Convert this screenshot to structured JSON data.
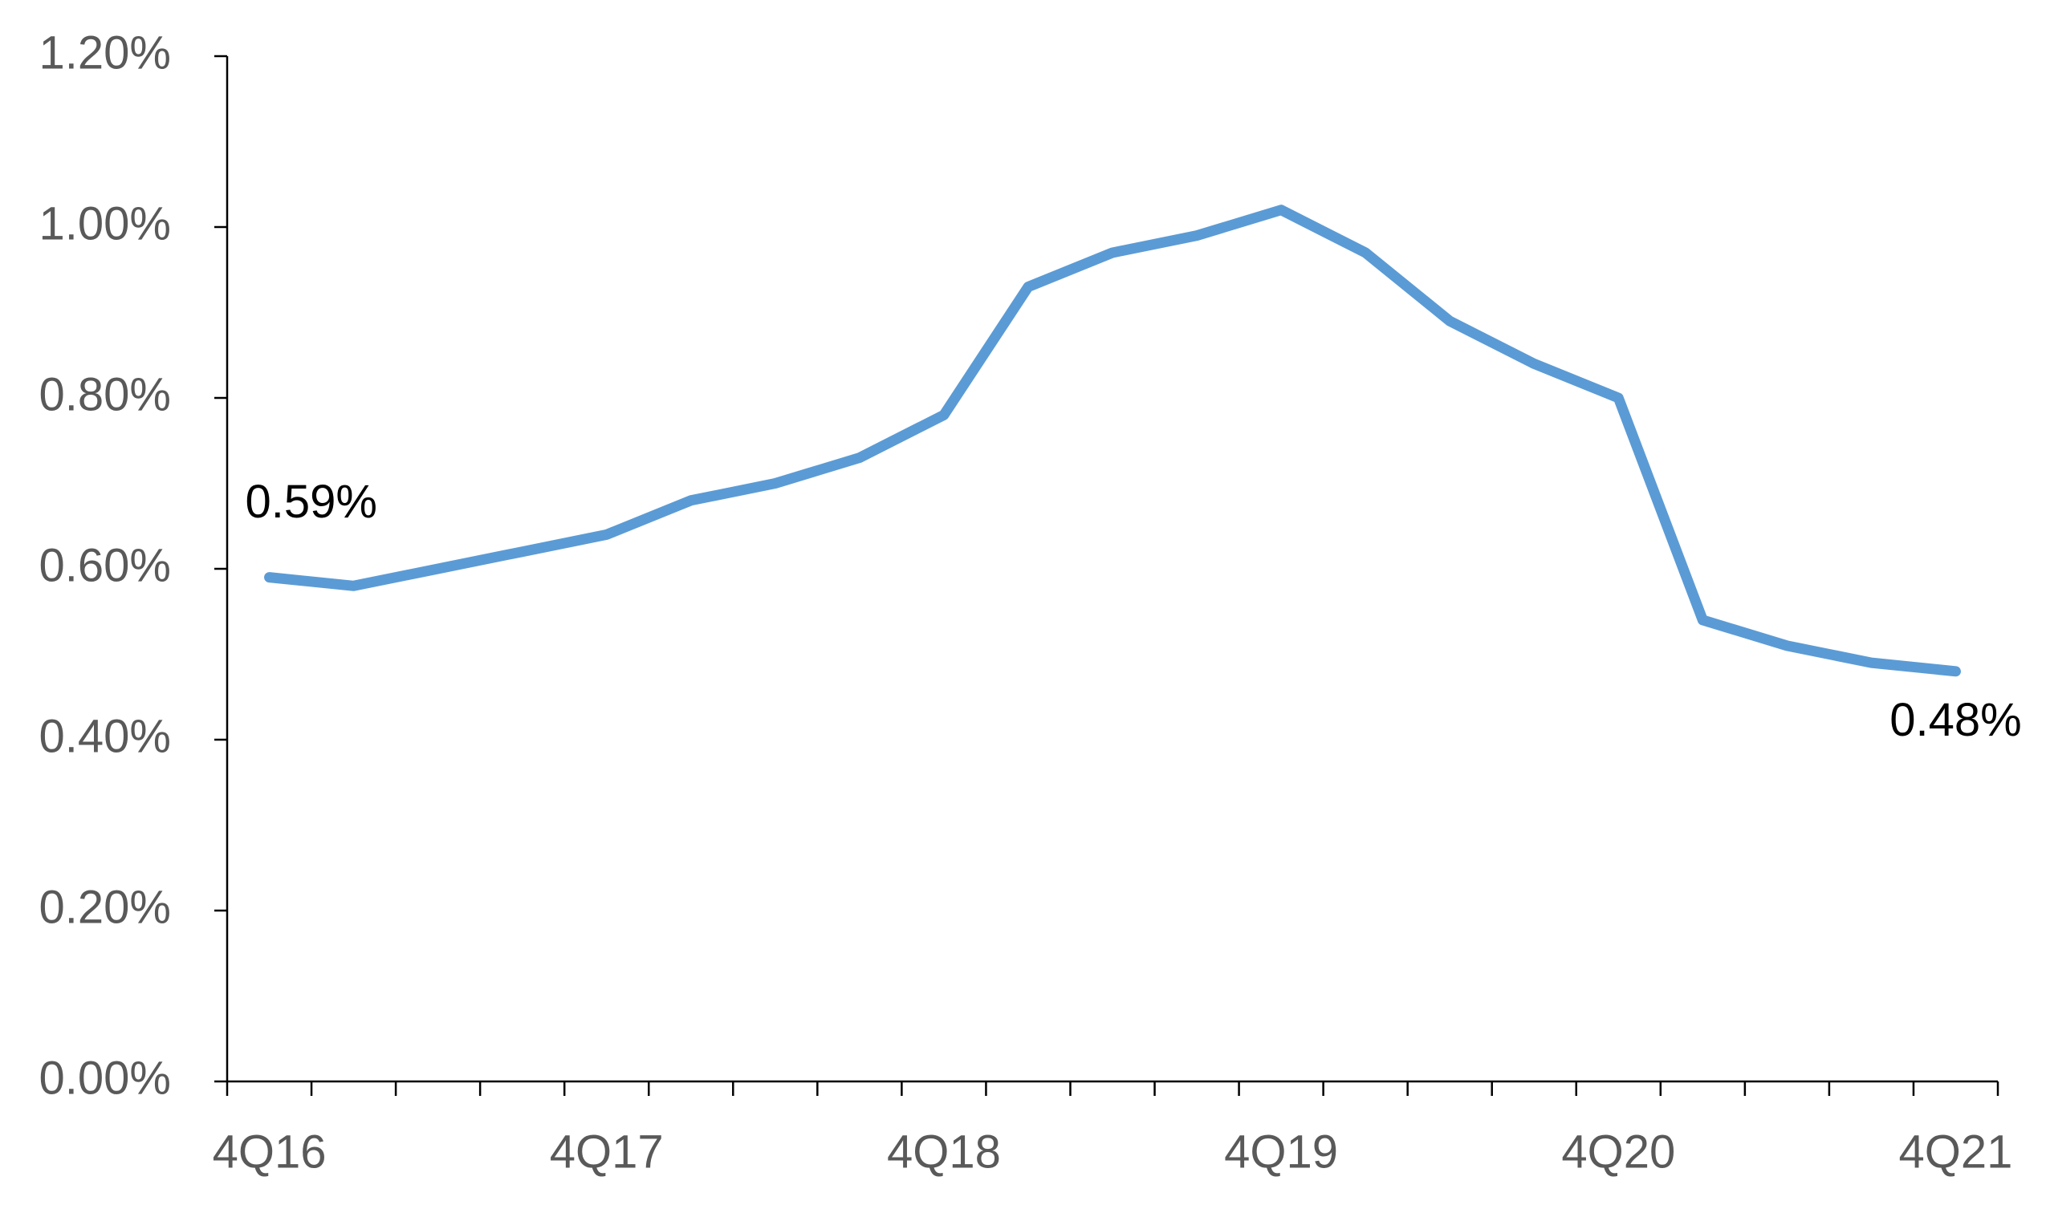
{
  "chart_data": {
    "type": "line",
    "categories": [
      "4Q16",
      null,
      null,
      null,
      "4Q17",
      null,
      null,
      null,
      "4Q18",
      null,
      null,
      null,
      "4Q19",
      null,
      null,
      null,
      "4Q20",
      null,
      null,
      null,
      "4Q21"
    ],
    "series": [
      {
        "color": "#5b9bd5",
        "values": [
          0.59,
          0.58,
          0.6,
          0.62,
          0.64,
          0.68,
          0.7,
          0.73,
          0.78,
          0.93,
          0.97,
          0.99,
          1.02,
          0.97,
          0.89,
          0.84,
          0.8,
          0.54,
          0.51,
          0.49,
          0.48
        ],
        "value_labels": [
          "0.59%",
          null,
          null,
          null,
          null,
          null,
          null,
          null,
          null,
          null,
          null,
          null,
          null,
          null,
          null,
          null,
          null,
          null,
          null,
          null,
          "0.48%"
        ]
      }
    ],
    "ylim": [
      0,
      1.2
    ],
    "yticks": [
      {
        "value": 0,
        "label": "0.00%"
      },
      {
        "value": 0.2,
        "label": "0.20%"
      },
      {
        "value": 0.4,
        "label": "0.40%"
      },
      {
        "value": 0.6,
        "label": "0.60%"
      },
      {
        "value": 0.8,
        "label": "0.80%"
      },
      {
        "value": 1.0,
        "label": "1.00%"
      },
      {
        "value": 1.2,
        "label": "1.20%"
      }
    ],
    "grid": false
  }
}
